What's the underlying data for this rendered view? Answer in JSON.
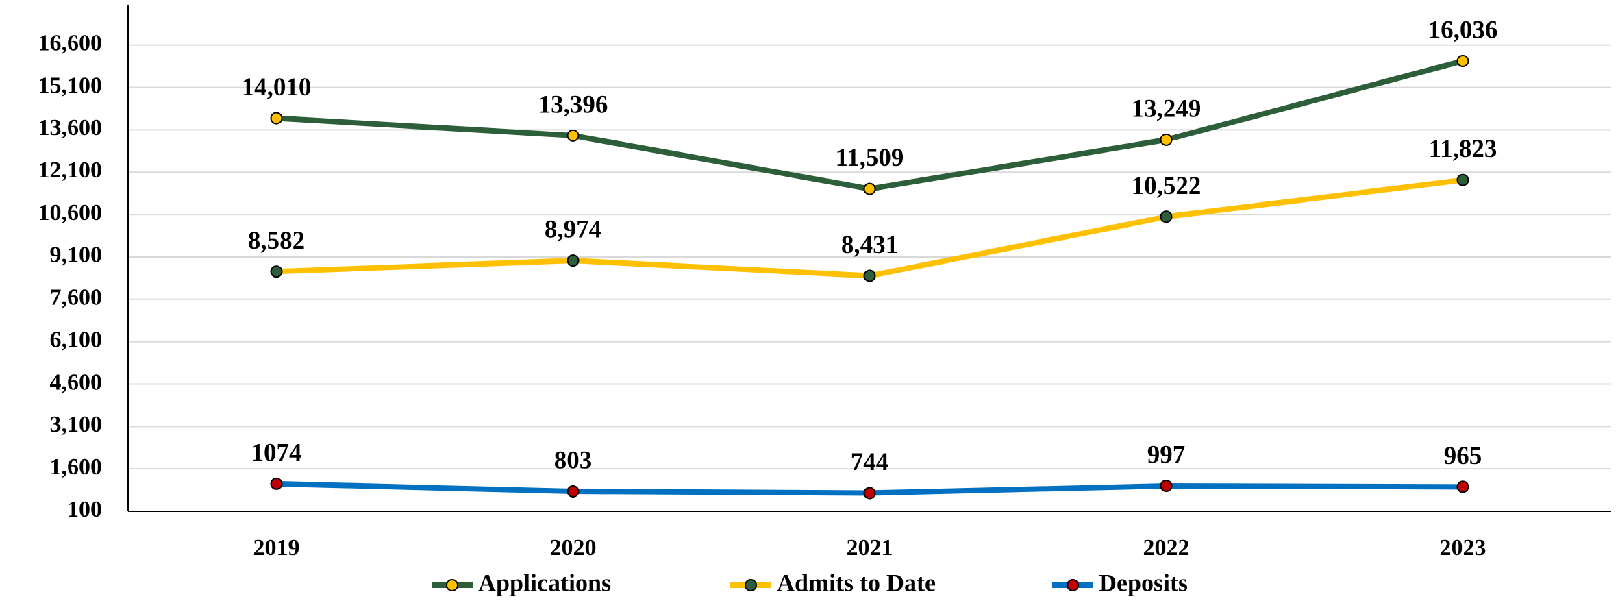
{
  "chart_data": {
    "type": "line",
    "categories": [
      "2019",
      "2020",
      "2021",
      "2022",
      "2023"
    ],
    "series": [
      {
        "name": "Applications",
        "color": "#2d5e3a",
        "marker_color": "#ffc000",
        "values": [
          14010,
          13396,
          11509,
          13249,
          16036
        ],
        "value_labels": [
          "14,010",
          "13,396",
          "11,509",
          "13,249",
          "16,036"
        ]
      },
      {
        "name": "Admits to Date",
        "color": "#ffc000",
        "marker_color": "#2d5e3a",
        "values": [
          8582,
          8974,
          8431,
          10522,
          11823
        ],
        "value_labels": [
          "8,582",
          "8,974",
          "8,431",
          "10,522",
          "11,823"
        ]
      },
      {
        "name": "Deposits",
        "color": "#0070c0",
        "marker_color": "#c00000",
        "values": [
          1074,
          803,
          744,
          997,
          965
        ]
      }
    ],
    "ylim": [
      100,
      18000
    ],
    "yticks": [
      100,
      {
        "value": 1600,
        "label": "1,600"
      },
      {
        "value": 3100,
        "label": "3,100"
      },
      {
        "value": 4600,
        "label": "4,600"
      },
      {
        "value": 6100,
        "label": "6,100"
      },
      {
        "value": 7600,
        "label": "7,600"
      },
      {
        "value": 9100,
        "label": "9,100"
      },
      {
        "value": 10600,
        "label": "10,600"
      },
      {
        "value": 12100,
        "label": "12,100"
      },
      {
        "value": 13600,
        "label": "13,600"
      },
      {
        "value": 15100,
        "label": "15,100"
      },
      {
        "value": 16600,
        "label": "16,600"
      }
    ],
    "grid": true,
    "legend": "bottom"
  }
}
